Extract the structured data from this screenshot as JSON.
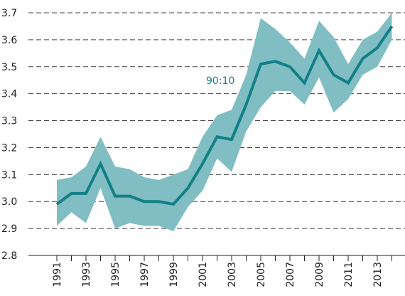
{
  "chart_data": {
    "type": "line",
    "categories": [
      "1991",
      null,
      "1993",
      null,
      "1995",
      null,
      "1997",
      null,
      "1999",
      null,
      "2001",
      null,
      "2003",
      null,
      "2005",
      null,
      "2007",
      null,
      "2009",
      null,
      "2011",
      null,
      "2013",
      null
    ],
    "series": [
      {
        "name": "90:10",
        "color": "#137f86",
        "values": [
          2.99,
          3.03,
          3.03,
          3.14,
          3.02,
          3.02,
          3.0,
          3.0,
          2.99,
          3.05,
          3.14,
          3.24,
          3.23,
          3.36,
          3.51,
          3.52,
          3.5,
          3.44,
          3.56,
          3.47,
          3.44,
          3.53,
          3.57,
          3.65
        ]
      }
    ],
    "band": {
      "color": "#80bec3",
      "upper": [
        3.08,
        3.09,
        3.13,
        3.24,
        3.13,
        3.12,
        3.09,
        3.08,
        3.1,
        3.12,
        3.24,
        3.32,
        3.34,
        3.47,
        3.68,
        3.64,
        3.59,
        3.53,
        3.67,
        3.61,
        3.51,
        3.6,
        3.63,
        3.7
      ],
      "lower": [
        2.91,
        2.96,
        2.92,
        3.05,
        2.9,
        2.92,
        2.91,
        2.91,
        2.89,
        2.98,
        3.04,
        3.16,
        3.11,
        3.26,
        3.35,
        3.41,
        3.41,
        3.36,
        3.46,
        3.33,
        3.38,
        3.47,
        3.5,
        3.6
      ]
    },
    "ylim": [
      2.8,
      3.7
    ],
    "yticks": [
      2.8,
      2.9,
      {
        "value": 3,
        "label": "3.0"
      },
      3.1,
      3.2,
      3.3,
      3.4,
      3.5,
      3.6,
      3.7
    ],
    "grid": true
  }
}
